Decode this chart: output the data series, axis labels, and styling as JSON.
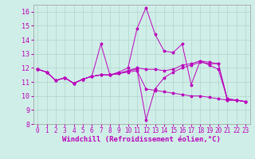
{
  "background_color": "#d0eee8",
  "grid_color": "#b0d4cc",
  "line_color": "#bb00bb",
  "xlabel": "Windchill (Refroidissement éolien,°C)",
  "xlabel_fontsize": 6.5,
  "xtick_fontsize": 5.5,
  "ytick_fontsize": 6,
  "xlim": [
    -0.5,
    23.5
  ],
  "ylim": [
    8,
    16.5
  ],
  "yticks": [
    8,
    9,
    10,
    11,
    12,
    13,
    14,
    15,
    16
  ],
  "xticks": [
    0,
    1,
    2,
    3,
    4,
    5,
    6,
    7,
    8,
    9,
    10,
    11,
    12,
    13,
    14,
    15,
    16,
    17,
    18,
    19,
    20,
    21,
    22,
    23
  ],
  "series": [
    {
      "x": [
        0,
        1,
        2,
        3,
        4,
        5,
        6,
        7,
        8,
        9,
        10,
        11,
        12,
        13,
        14,
        15,
        16,
        17,
        18,
        19,
        20,
        21,
        22,
        23
      ],
      "y": [
        11.9,
        11.7,
        11.1,
        11.3,
        10.9,
        11.2,
        11.4,
        13.7,
        11.5,
        11.7,
        12.0,
        14.8,
        16.3,
        14.4,
        13.2,
        13.1,
        13.7,
        10.8,
        12.5,
        12.2,
        11.9,
        9.8,
        9.7,
        9.6
      ]
    },
    {
      "x": [
        0,
        1,
        2,
        3,
        4,
        5,
        6,
        7,
        8,
        9,
        10,
        11,
        12,
        13,
        14,
        15,
        16,
        17,
        18,
        19,
        20,
        21,
        22,
        23
      ],
      "y": [
        11.9,
        11.7,
        11.1,
        11.3,
        10.9,
        11.2,
        11.4,
        11.5,
        11.5,
        11.6,
        11.8,
        11.9,
        8.3,
        10.5,
        11.3,
        11.7,
        12.0,
        12.2,
        12.4,
        12.3,
        12.3,
        9.7,
        9.7,
        9.6
      ]
    },
    {
      "x": [
        0,
        1,
        2,
        3,
        4,
        5,
        6,
        7,
        8,
        9,
        10,
        11,
        12,
        13,
        14,
        15,
        16,
        17,
        18,
        19,
        20,
        21,
        22,
        23
      ],
      "y": [
        11.9,
        11.7,
        11.1,
        11.3,
        10.9,
        11.2,
        11.4,
        11.5,
        11.5,
        11.6,
        11.7,
        11.8,
        10.5,
        10.4,
        10.3,
        10.2,
        10.1,
        10.0,
        10.0,
        9.9,
        9.8,
        9.7,
        9.7,
        9.6
      ]
    },
    {
      "x": [
        0,
        1,
        2,
        3,
        4,
        5,
        6,
        7,
        8,
        9,
        10,
        11,
        12,
        13,
        14,
        15,
        16,
        17,
        18,
        19,
        20,
        21,
        22,
        23
      ],
      "y": [
        11.9,
        11.7,
        11.1,
        11.3,
        10.9,
        11.2,
        11.4,
        11.5,
        11.5,
        11.6,
        11.8,
        12.0,
        11.9,
        11.9,
        11.8,
        11.9,
        12.2,
        12.3,
        12.5,
        12.4,
        12.3,
        9.8,
        9.7,
        9.6
      ]
    }
  ]
}
